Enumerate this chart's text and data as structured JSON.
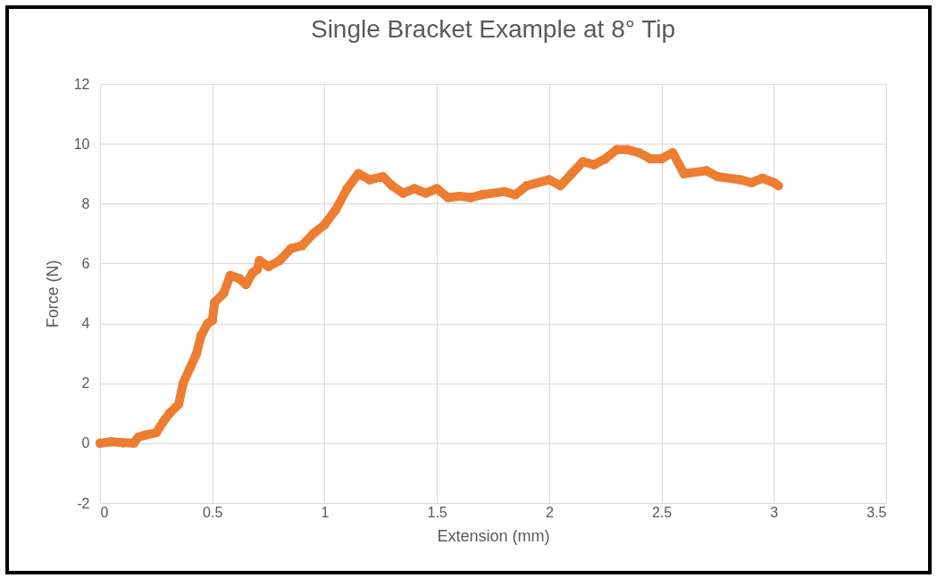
{
  "chart_data": {
    "type": "line",
    "title": "Single Bracket Example at 8° Tip",
    "xlabel": "Extension (mm)",
    "ylabel": "Force (N)",
    "x": [
      0,
      0.05,
      0.1,
      0.15,
      0.17,
      0.2,
      0.25,
      0.28,
      0.31,
      0.35,
      0.37,
      0.4,
      0.43,
      0.45,
      0.48,
      0.5,
      0.51,
      0.55,
      0.58,
      0.62,
      0.65,
      0.68,
      0.7,
      0.71,
      0.75,
      0.8,
      0.85,
      0.9,
      0.95,
      1.0,
      1.05,
      1.1,
      1.15,
      1.2,
      1.26,
      1.3,
      1.35,
      1.4,
      1.45,
      1.5,
      1.55,
      1.6,
      1.65,
      1.7,
      1.8,
      1.85,
      1.9,
      2.0,
      2.05,
      2.1,
      2.15,
      2.2,
      2.25,
      2.3,
      2.35,
      2.4,
      2.45,
      2.5,
      2.55,
      2.6,
      2.7,
      2.75,
      2.85,
      2.9,
      2.95,
      3.0,
      3.02
    ],
    "series": [
      {
        "color": "#ed7d31",
        "values": [
          0,
          0.05,
          0.02,
          0,
          0.2,
          0.27,
          0.35,
          0.7,
          1.0,
          1.3,
          2.0,
          2.5,
          3.0,
          3.6,
          4.0,
          4.1,
          4.7,
          5.0,
          5.6,
          5.5,
          5.3,
          5.7,
          5.8,
          6.1,
          5.9,
          6.1,
          6.5,
          6.6,
          7.0,
          7.3,
          7.8,
          8.5,
          9.0,
          8.8,
          8.9,
          8.6,
          8.35,
          8.5,
          8.35,
          8.5,
          8.2,
          8.25,
          8.2,
          8.3,
          8.4,
          8.3,
          8.6,
          8.8,
          8.6,
          9.0,
          9.4,
          9.3,
          9.5,
          9.8,
          9.8,
          9.7,
          9.5,
          9.5,
          9.7,
          9.0,
          9.1,
          8.9,
          8.8,
          8.7,
          8.85,
          8.7,
          8.6
        ]
      }
    ],
    "xlim": [
      0,
      3.5
    ],
    "xticks": [
      0,
      0.5,
      1,
      1.5,
      2,
      2.5,
      3,
      3.5
    ],
    "ylim": [
      -2,
      12
    ],
    "yticks": [
      -2,
      0,
      2,
      4,
      6,
      8,
      10,
      12
    ],
    "grid": true,
    "marker": "circle",
    "line_style": "solid"
  }
}
